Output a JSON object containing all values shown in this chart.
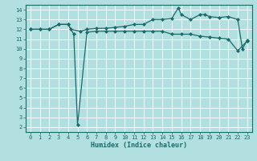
{
  "xlabel": "Humidex (Indice chaleur)",
  "bg_color": "#b2dfdf",
  "line_color": "#1a6b6b",
  "grid_color": "#ffffff",
  "xlim": [
    -0.5,
    23.5
  ],
  "ylim": [
    1.5,
    14.5
  ],
  "xticks": [
    0,
    1,
    2,
    3,
    4,
    5,
    6,
    7,
    8,
    9,
    10,
    11,
    12,
    13,
    14,
    15,
    16,
    17,
    18,
    19,
    20,
    21,
    22,
    23
  ],
  "yticks": [
    2,
    3,
    4,
    5,
    6,
    7,
    8,
    9,
    10,
    11,
    12,
    13,
    14
  ],
  "series1_x": [
    0,
    1,
    2,
    3,
    4,
    4.6,
    5.0,
    6,
    7,
    8,
    9,
    10,
    11,
    12,
    13,
    14,
    15,
    16,
    17,
    18,
    19,
    20,
    21,
    22,
    23
  ],
  "series1_y": [
    12,
    12,
    12,
    12.5,
    12.5,
    11.5,
    2.2,
    11.7,
    11.8,
    11.8,
    11.8,
    11.8,
    11.8,
    11.8,
    11.8,
    11.8,
    11.5,
    11.5,
    11.5,
    11.3,
    11.2,
    11.1,
    11.0,
    9.8,
    10.8
  ],
  "series2_x": [
    0,
    1,
    2,
    3,
    4,
    4.3,
    5.3,
    6,
    7,
    8,
    9,
    10,
    11,
    12,
    13,
    14,
    15,
    15.7,
    16,
    17,
    18,
    18.5,
    19,
    20,
    21,
    22,
    22.5,
    23
  ],
  "series2_y": [
    12,
    12,
    12,
    12.5,
    12.5,
    12.0,
    11.8,
    12.0,
    12.1,
    12.1,
    12.2,
    12.3,
    12.5,
    12.5,
    13.0,
    13.0,
    13.1,
    14.2,
    13.5,
    13.0,
    13.5,
    13.5,
    13.3,
    13.2,
    13.3,
    13.0,
    10.0,
    10.9
  ],
  "marker": "D",
  "markersize": 2.0,
  "linewidth": 0.9,
  "tick_fontsize": 5.0,
  "xlabel_fontsize": 6.0
}
